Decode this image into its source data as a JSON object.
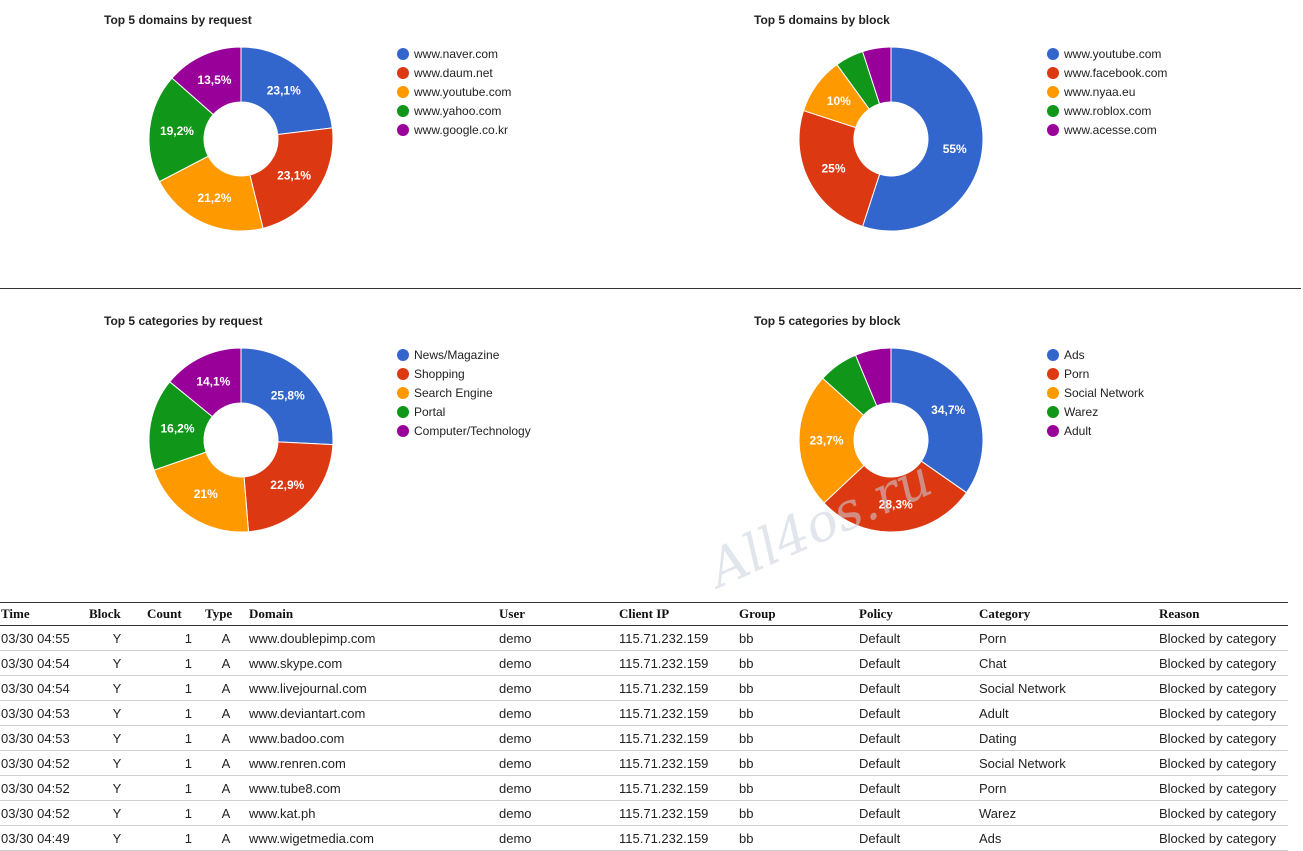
{
  "chart_data": [
    {
      "type": "pie",
      "title": "Top 5 domains by request",
      "labels": [
        "www.naver.com",
        "www.daum.net",
        "www.youtube.com",
        "www.yahoo.com",
        "www.google.co.kr"
      ],
      "values": [
        23.1,
        23.1,
        21.2,
        19.2,
        13.5
      ],
      "value_labels": [
        "23,1%",
        "23,1%",
        "21,2%",
        "19,2%",
        "13,5%"
      ],
      "colors": [
        "#3366cc",
        "#dc3912",
        "#ff9900",
        "#109618",
        "#990099"
      ],
      "donut": true,
      "legend": "right"
    },
    {
      "type": "pie",
      "title": "Top 5 domains by block",
      "labels": [
        "www.youtube.com",
        "www.facebook.com",
        "www.nyaa.eu",
        "www.roblox.com",
        "www.acesse.com"
      ],
      "values": [
        55,
        25,
        10,
        5,
        5
      ],
      "value_labels": [
        "55%",
        "25%",
        "10%",
        "",
        ""
      ],
      "colors": [
        "#3366cc",
        "#dc3912",
        "#ff9900",
        "#109618",
        "#990099"
      ],
      "donut": true,
      "legend": "right"
    },
    {
      "type": "pie",
      "title": "Top 5 categories by request",
      "labels": [
        "News/Magazine",
        "Shopping",
        "Search Engine",
        "Portal",
        "Computer/Technology"
      ],
      "values": [
        25.8,
        22.9,
        21,
        16.2,
        14.1
      ],
      "value_labels": [
        "25,8%",
        "22,9%",
        "21%",
        "16,2%",
        "14,1%"
      ],
      "colors": [
        "#3366cc",
        "#dc3912",
        "#ff9900",
        "#109618",
        "#990099"
      ],
      "donut": true,
      "legend": "right"
    },
    {
      "type": "pie",
      "title": "Top 5 categories by block",
      "labels": [
        "Ads",
        "Porn",
        "Social Network",
        "Warez",
        "Adult"
      ],
      "values": [
        34.7,
        28.3,
        23.7,
        7,
        6.3
      ],
      "value_labels": [
        "34,7%",
        "28,3%",
        "23,7%",
        "",
        ""
      ],
      "colors": [
        "#3366cc",
        "#dc3912",
        "#ff9900",
        "#109618",
        "#990099"
      ],
      "donut": true,
      "legend": "right"
    }
  ],
  "table": {
    "headers": [
      "Time",
      "Block",
      "Count",
      "Type",
      "Domain",
      "User",
      "Client IP",
      "Group",
      "Policy",
      "Category",
      "Reason"
    ],
    "rows": [
      [
        "03/30 04:55",
        "Y",
        "1",
        "A",
        "www.doublepimp.com",
        "demo",
        "115.71.232.159",
        "bb",
        "Default",
        "Porn",
        "Blocked by category"
      ],
      [
        "03/30 04:54",
        "Y",
        "1",
        "A",
        "www.skype.com",
        "demo",
        "115.71.232.159",
        "bb",
        "Default",
        "Chat",
        "Blocked by category"
      ],
      [
        "03/30 04:54",
        "Y",
        "1",
        "A",
        "www.livejournal.com",
        "demo",
        "115.71.232.159",
        "bb",
        "Default",
        "Social Network",
        "Blocked by category"
      ],
      [
        "03/30 04:53",
        "Y",
        "1",
        "A",
        "www.deviantart.com",
        "demo",
        "115.71.232.159",
        "bb",
        "Default",
        "Adult",
        "Blocked by category"
      ],
      [
        "03/30 04:53",
        "Y",
        "1",
        "A",
        "www.badoo.com",
        "demo",
        "115.71.232.159",
        "bb",
        "Default",
        "Dating",
        "Blocked by category"
      ],
      [
        "03/30 04:52",
        "Y",
        "1",
        "A",
        "www.renren.com",
        "demo",
        "115.71.232.159",
        "bb",
        "Default",
        "Social Network",
        "Blocked by category"
      ],
      [
        "03/30 04:52",
        "Y",
        "1",
        "A",
        "www.tube8.com",
        "demo",
        "115.71.232.159",
        "bb",
        "Default",
        "Porn",
        "Blocked by category"
      ],
      [
        "03/30 04:52",
        "Y",
        "1",
        "A",
        "www.kat.ph",
        "demo",
        "115.71.232.159",
        "bb",
        "Default",
        "Warez",
        "Blocked by category"
      ],
      [
        "03/30 04:49",
        "Y",
        "1",
        "A",
        "www.wigetmedia.com",
        "demo",
        "115.71.232.159",
        "bb",
        "Default",
        "Ads",
        "Blocked by category"
      ]
    ]
  },
  "watermark": "All4os.ru"
}
